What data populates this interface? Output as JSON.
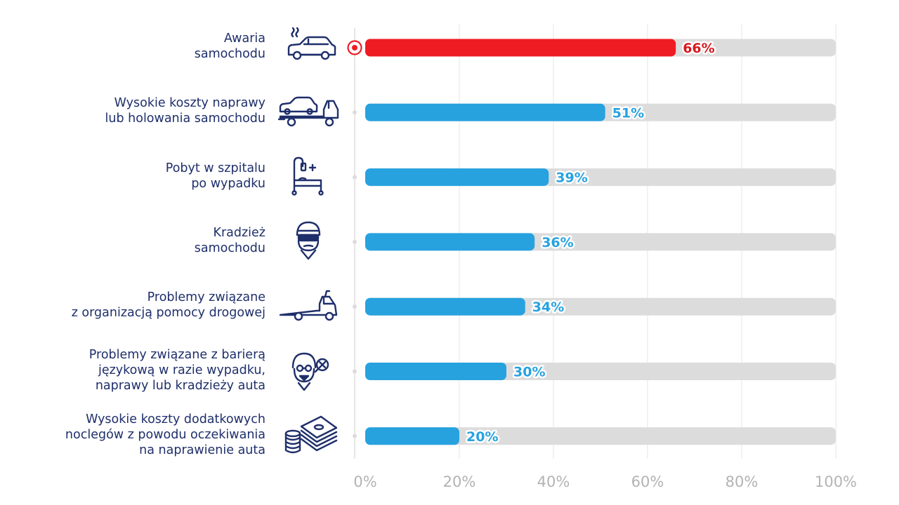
{
  "chart_data": {
    "type": "bar",
    "orientation": "horizontal",
    "categories": [
      [
        "Awaria",
        "samochodu"
      ],
      [
        "Wysokie koszty naprawy",
        "lub holowania samochodu"
      ],
      [
        "Pobyt w szpitalu",
        "po wypadku"
      ],
      [
        "Kradzież",
        "samochodu"
      ],
      [
        "Problemy związane",
        "z organizacją pomocy drogowej"
      ],
      [
        "Problemy związane z barierą",
        "językową w razie wypadku,",
        "naprawy lub kradzieży auta"
      ],
      [
        "Wysokie koszty dodatkowych",
        "noclegów z powodu oczekiwania",
        "na naprawienie auta"
      ]
    ],
    "values": [
      66,
      51,
      39,
      36,
      34,
      30,
      20
    ],
    "value_labels": [
      "66%",
      "51%",
      "39%",
      "36%",
      "34%",
      "30%",
      "20%"
    ],
    "icons": [
      "broken-car-icon",
      "tow-truck-icon",
      "hospital-bed-icon",
      "thief-icon",
      "flatbed-truck-icon",
      "language-barrier-icon",
      "money-coins-icon"
    ],
    "highlight_index": 0,
    "xlim": [
      0,
      100
    ],
    "xticks": [
      "0%",
      "20%",
      "40%",
      "60%",
      "80%",
      "100%"
    ],
    "grid": true,
    "colors": {
      "highlight": "#ef1c24",
      "bar": "#27a2df",
      "track": "#dcdcdc",
      "highlight_label": "#d7191f",
      "bar_label": "#27a2df",
      "category_text": "#1f2f6b",
      "tick_text": "#b3b3b3",
      "grid": "#e6e6e6",
      "icon": "#1f2f6b"
    }
  }
}
